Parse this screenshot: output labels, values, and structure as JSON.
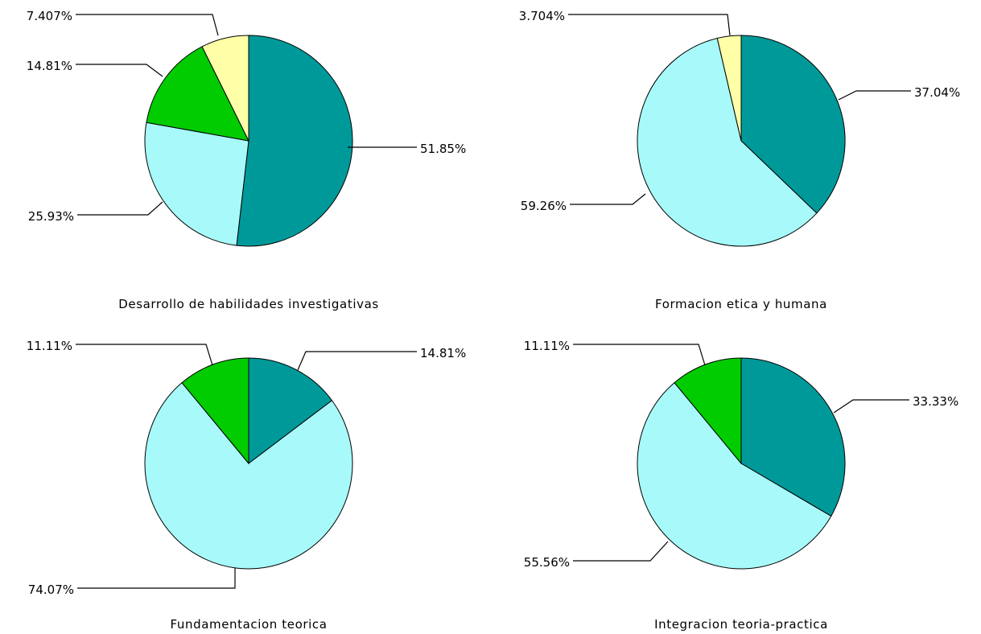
{
  "colors": {
    "teal": "#009999",
    "light_cyan": "#A8FAFA",
    "green": "#00CC00",
    "pale_yellow": "#FFFFA8"
  },
  "chart_data": [
    {
      "type": "pie",
      "title": "Desarrollo de habilidades investigativas",
      "slices": [
        {
          "value": 51.85,
          "label": "51.85%",
          "color": "#009999"
        },
        {
          "value": 25.93,
          "label": "25.93%",
          "color": "#A8FAFA"
        },
        {
          "value": 14.81,
          "label": "14.81%",
          "color": "#00CC00"
        },
        {
          "value": 7.407,
          "label": "7.407%",
          "color": "#FFFFA8"
        }
      ]
    },
    {
      "type": "pie",
      "title": "Formacion etica y humana",
      "slices": [
        {
          "value": 37.04,
          "label": "37.04%",
          "color": "#009999"
        },
        {
          "value": 59.26,
          "label": "59.26%",
          "color": "#A8FAFA"
        },
        {
          "value": 3.704,
          "label": "3.704%",
          "color": "#FFFFA8"
        }
      ]
    },
    {
      "type": "pie",
      "title": "Fundamentacion teorica",
      "slices": [
        {
          "value": 14.81,
          "label": "14.81%",
          "color": "#009999"
        },
        {
          "value": 74.07,
          "label": "74.07%",
          "color": "#A8FAFA"
        },
        {
          "value": 11.11,
          "label": "11.11%",
          "color": "#00CC00"
        }
      ]
    },
    {
      "type": "pie",
      "title": "Integracion teoria-practica",
      "slices": [
        {
          "value": 33.33,
          "label": "33.33%",
          "color": "#009999"
        },
        {
          "value": 55.56,
          "label": "55.56%",
          "color": "#A8FAFA"
        },
        {
          "value": 11.11,
          "label": "11.11%",
          "color": "#00CC00"
        }
      ]
    }
  ]
}
